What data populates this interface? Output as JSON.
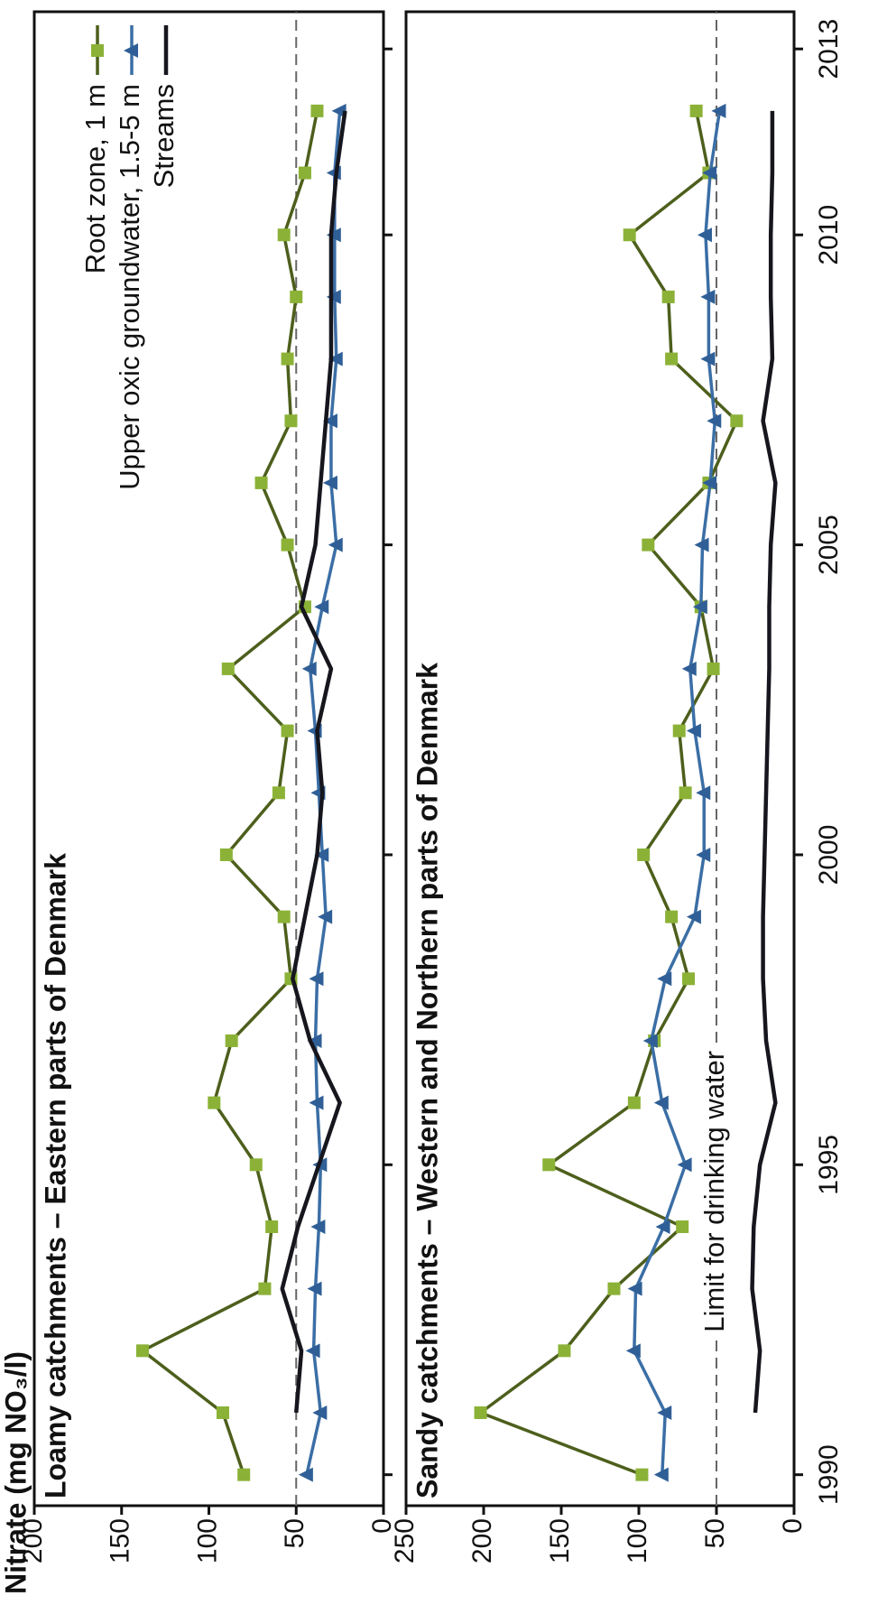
{
  "title": "Nitrate (mg NO₃/l)",
  "chart_data": [
    {
      "type": "line",
      "title": "Loamy catchments – Eastern parts of Denmark",
      "x": [
        1990,
        1991,
        1992,
        1993,
        1994,
        1995,
        1996,
        1997,
        1998,
        1999,
        2000,
        2001,
        2002,
        2003,
        2004,
        2005,
        2006,
        2007,
        2008,
        2009,
        2010,
        2011,
        2012
      ],
      "xlim": [
        1989.5,
        2013.6
      ],
      "xticks": [
        1990,
        1995,
        2000,
        2005,
        2010,
        2013
      ],
      "ylim": [
        0,
        200
      ],
      "yticks": [
        0,
        50,
        100,
        150,
        200
      ],
      "reference_line": 50,
      "legend": "top-right",
      "series": [
        {
          "name": "Root zone, 1 m",
          "color": "#4d5f1c",
          "marker": "square",
          "marker_color": "#8bb237",
          "values": [
            80,
            92,
            138,
            68,
            64,
            73,
            97,
            87,
            53,
            57,
            90,
            60,
            55,
            89,
            45,
            55,
            70,
            53,
            55,
            50,
            57,
            45,
            38
          ]
        },
        {
          "name": "Upper oxic groundwater, 1.5-5 m",
          "color": "#3b6ea5",
          "marker": "triangle",
          "marker_color": "#2f5f96",
          "values": [
            44,
            36,
            40,
            39,
            37,
            36,
            38,
            39,
            38,
            33,
            35,
            37,
            39,
            42,
            35,
            27,
            30,
            30,
            27,
            28,
            28,
            28,
            25
          ]
        },
        {
          "name": "Streams",
          "color": "#16161e",
          "marker": "none",
          "values": [
            null,
            50,
            47,
            58,
            49,
            37,
            25,
            42,
            52,
            45,
            38,
            35,
            38,
            30,
            47,
            39,
            36,
            33,
            30,
            30,
            30,
            27,
            22
          ]
        }
      ]
    },
    {
      "type": "line",
      "title": "Sandy catchments – Western and Northern parts of Denmark",
      "x": [
        1990,
        1991,
        1992,
        1993,
        1994,
        1995,
        1996,
        1997,
        1998,
        1999,
        2000,
        2001,
        2002,
        2003,
        2004,
        2005,
        2006,
        2007,
        2008,
        2009,
        2010,
        2011,
        2012
      ],
      "xlim": [
        1989.5,
        2013.6
      ],
      "xticks": [
        1990,
        1995,
        2000,
        2005,
        2010,
        2013
      ],
      "ylim": [
        0,
        250
      ],
      "yticks": [
        0,
        50,
        100,
        150,
        200,
        250
      ],
      "reference_line": 50,
      "annotation": "Limit for drinking water",
      "series": [
        {
          "color": "#4d5f1c",
          "marker": "square",
          "marker_color": "#8bb237",
          "values": [
            98,
            202,
            148,
            116,
            72,
            158,
            103,
            90,
            68,
            79,
            97,
            70,
            74,
            52,
            60,
            94,
            55,
            37,
            79,
            81,
            106,
            55,
            63
          ]
        },
        {
          "color": "#3b6ea5",
          "marker": "triangle",
          "marker_color": "#2f5f96",
          "values": [
            85,
            83,
            103,
            102,
            84,
            70,
            85,
            92,
            83,
            64,
            58,
            58,
            64,
            67,
            60,
            59,
            54,
            51,
            55,
            55,
            57,
            54,
            48
          ]
        },
        {
          "color": "#16161e",
          "marker": "none",
          "values": [
            null,
            25,
            22,
            27,
            26,
            22,
            12,
            18,
            20,
            20,
            19,
            18,
            17,
            16,
            16,
            15,
            12,
            20,
            14,
            15,
            15,
            14,
            14
          ]
        }
      ]
    }
  ]
}
